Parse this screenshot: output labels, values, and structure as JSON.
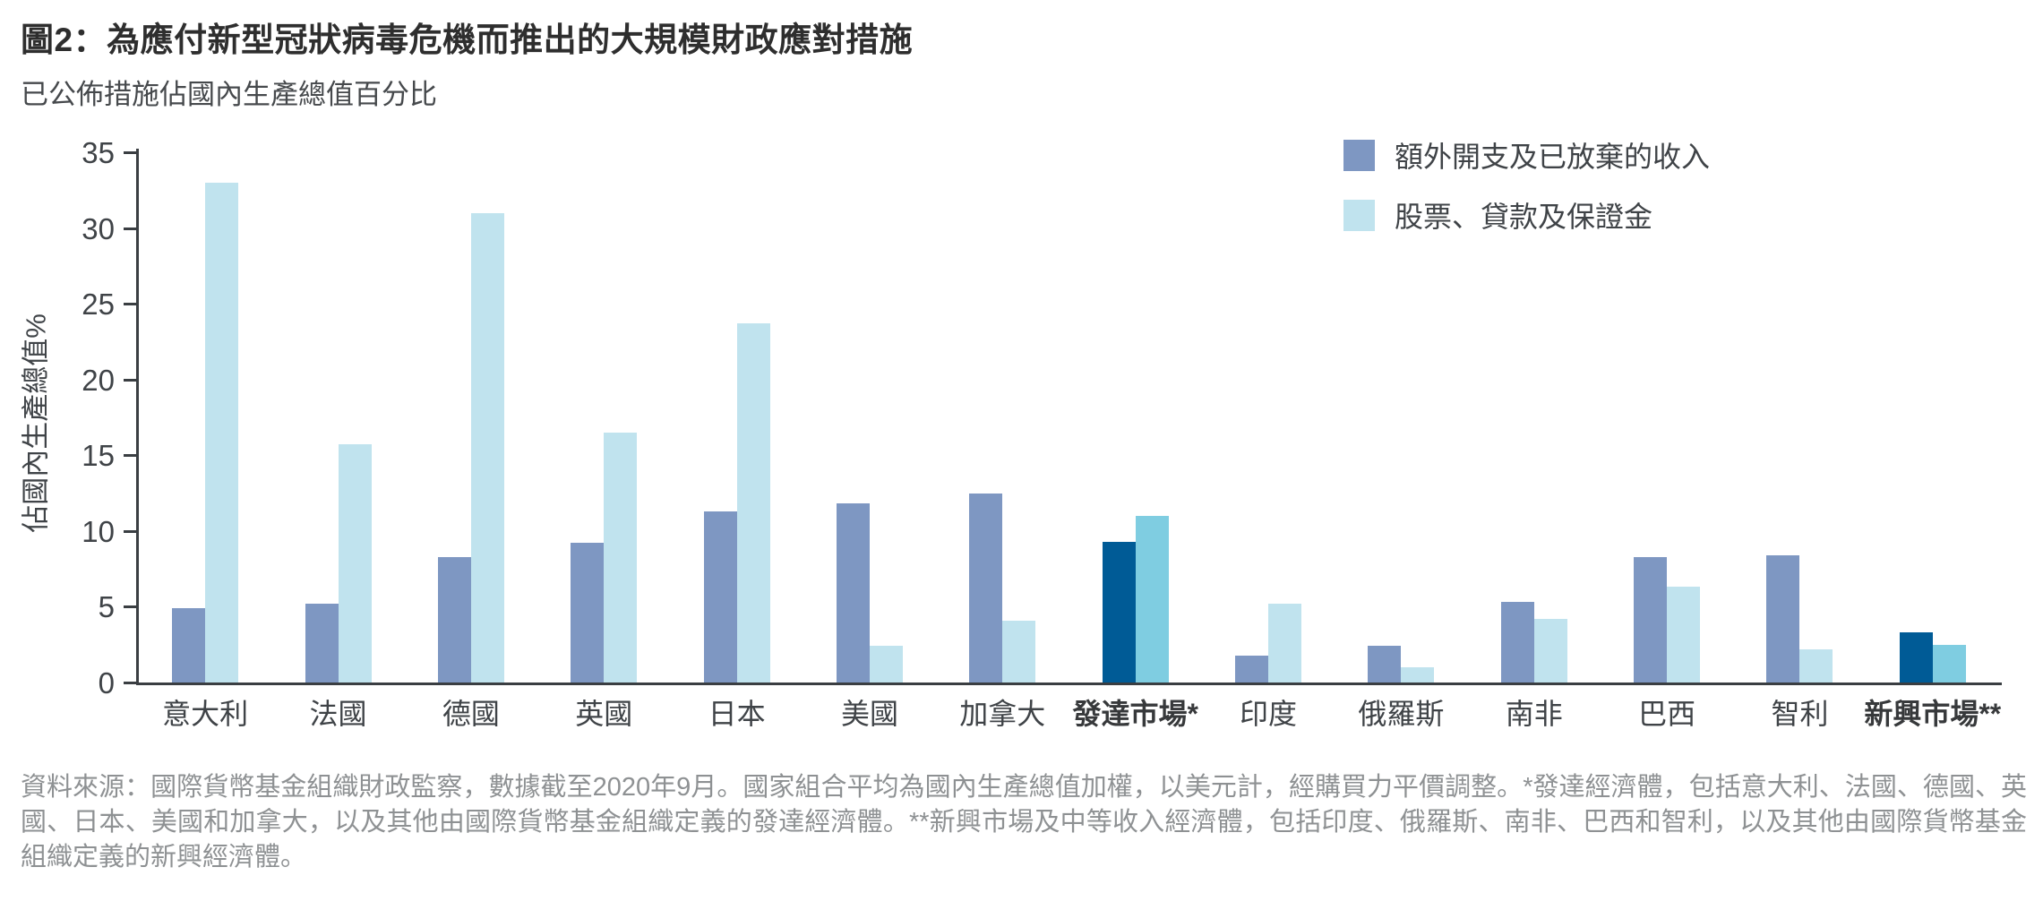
{
  "title": "圖2：為應付新型冠狀病毒危機而推出的大規模財政應對措施",
  "subtitle": "已公佈措施佔國內生產總值百分比",
  "legend": [
    {
      "label": "額外開支及已放棄的收入",
      "color": "#7E97C2"
    },
    {
      "label": "股票、貸款及保證金",
      "color": "#C0E3EE"
    }
  ],
  "colors": {
    "series1": "#7E97C2",
    "series2": "#C0E3EE",
    "series1_highlight": "#005B96",
    "series2_highlight": "#7FCDE1",
    "axis": "#3A3E42",
    "tick_text": "#3F4347",
    "footnote_text": "#8E9193"
  },
  "chart_data": {
    "type": "bar",
    "title": "圖2：為應付新型冠狀病毒危機而推出的大規模財政應對措施",
    "subtitle": "已公佈措施佔國內生產總值百分比",
    "ylabel": "佔國內生產總值%",
    "xlabel": "",
    "ylim": [
      0,
      35
    ],
    "yticks": [
      0,
      5,
      10,
      15,
      20,
      25,
      30,
      35
    ],
    "grid": false,
    "legend_position": "top-right",
    "categories": [
      "意大利",
      "法國",
      "德國",
      "英國",
      "日本",
      "美國",
      "加拿大",
      "發達市場*",
      "印度",
      "俄羅斯",
      "南非",
      "巴西",
      "智利",
      "新興市場**"
    ],
    "highlighted_categories": [
      "發達市場*",
      "新興市場**"
    ],
    "series": [
      {
        "name": "額外開支及已放棄的收入",
        "values": [
          4.9,
          5.2,
          8.3,
          9.2,
          11.3,
          11.8,
          12.5,
          9.3,
          1.8,
          2.4,
          5.3,
          8.3,
          8.4,
          3.3
        ]
      },
      {
        "name": "股票、貸款及保證金",
        "values": [
          33.0,
          15.7,
          31.0,
          16.5,
          23.7,
          2.4,
          4.1,
          11.0,
          5.2,
          1.0,
          4.2,
          6.3,
          2.2,
          2.5
        ]
      }
    ]
  },
  "footnote": "資料來源：國際貨幣基金組織財政監察，數據截至2020年9月。國家組合平均為國內生產總值加權，以美元計，經購買力平價調整。*發達經濟體，包括意大利、法國、德國、英國、日本、美國和加拿大，以及其他由國際貨幣基金組織定義的發達經濟體。**新興市場及中等收入經濟體，包括印度、俄羅斯、南非、巴西和智利，以及其他由國際貨幣基金組織定義的新興經濟體。"
}
